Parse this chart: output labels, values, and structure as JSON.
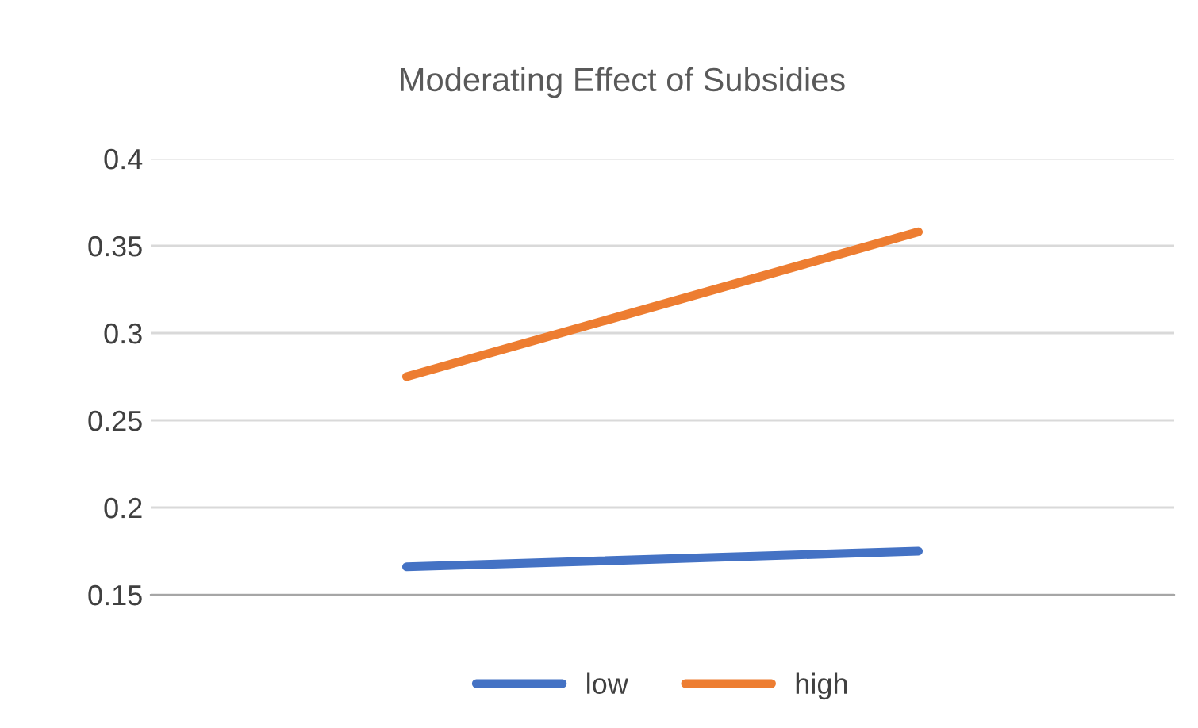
{
  "chart_data": {
    "type": "line",
    "title": "Moderating Effect of Subsidies",
    "categories": [
      null,
      null
    ],
    "series": [
      {
        "name": "low",
        "color": "#4472c4",
        "values": [
          0.166,
          0.175
        ]
      },
      {
        "name": "high",
        "color": "#ed7d31",
        "values": [
          0.275,
          0.358
        ]
      }
    ],
    "ylim": [
      0.15,
      0.4
    ],
    "yticks": [
      0.15,
      0.2,
      0.25,
      0.3,
      0.35,
      0.4
    ],
    "grid": "y",
    "legend": "bottom"
  }
}
